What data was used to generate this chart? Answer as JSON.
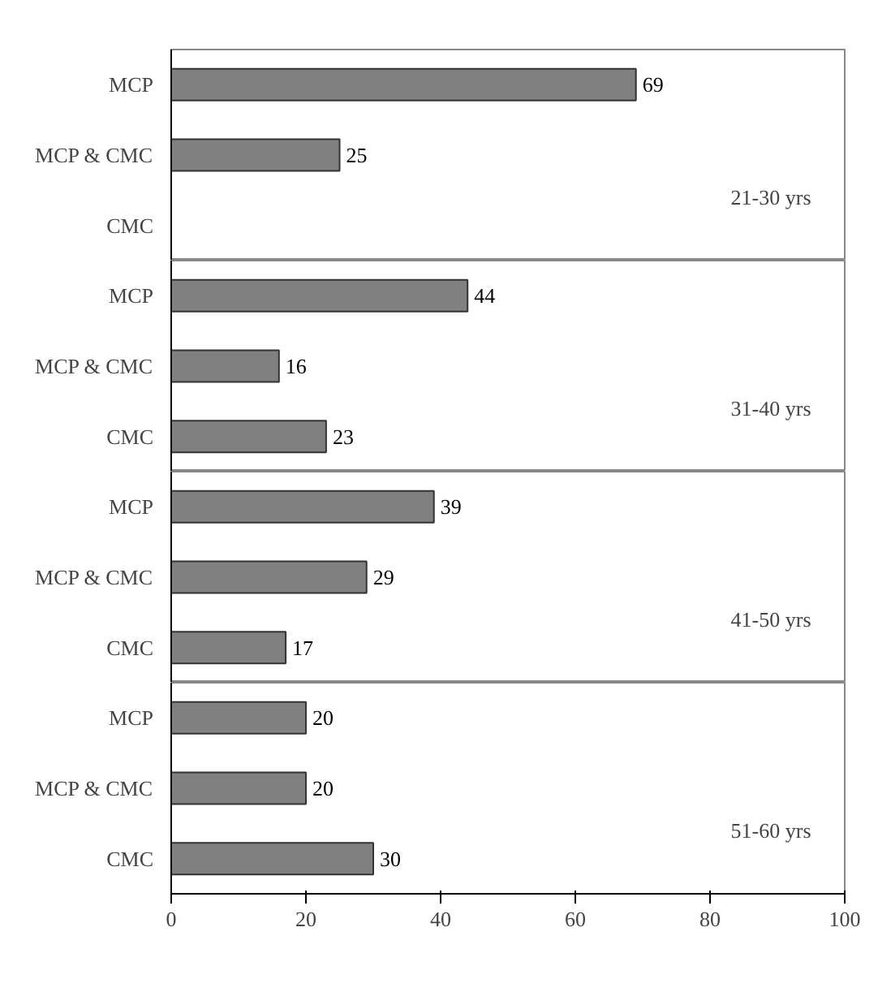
{
  "chart_data": [
    {
      "type": "bar",
      "orientation": "horizontal",
      "categories": [
        "MCP",
        "MCP & CMC",
        "CMC"
      ],
      "values": [
        69,
        25,
        null
      ],
      "color": "#808080",
      "xlim": [
        0,
        100
      ],
      "xticks": [
        0,
        20,
        40,
        60,
        80,
        100
      ],
      "data_labels": true,
      "tick_labels": "y",
      "grid": false,
      "annotations": [
        "21-30 yrs"
      ]
    },
    {
      "type": "bar",
      "orientation": "horizontal",
      "categories": [
        "MCP",
        "MCP & CMC",
        "CMC"
      ],
      "values": [
        44,
        16,
        23
      ],
      "color": "#808080",
      "xlim": [
        0,
        100
      ],
      "xticks": [
        0,
        20,
        40,
        60,
        80,
        100
      ],
      "data_labels": true,
      "tick_labels": "y",
      "grid": false,
      "annotations": [
        "31-40 yrs"
      ]
    },
    {
      "type": "bar",
      "orientation": "horizontal",
      "categories": [
        "MCP",
        "MCP & CMC",
        "CMC"
      ],
      "values": [
        39,
        29,
        17
      ],
      "color": "#808080",
      "xlim": [
        0,
        100
      ],
      "xticks": [
        0,
        20,
        40,
        60,
        80,
        100
      ],
      "data_labels": true,
      "tick_labels": "y",
      "grid": false,
      "annotations": [
        "41-50 yrs"
      ]
    },
    {
      "type": "bar",
      "orientation": "horizontal",
      "categories": [
        "MCP",
        "MCP & CMC",
        "CMC"
      ],
      "values": [
        20,
        20,
        30
      ],
      "color": "#808080",
      "xlim": [
        0,
        100
      ],
      "xticks": [
        0,
        20,
        40,
        60,
        80,
        100
      ],
      "data_labels": true,
      "grid": false,
      "annotations": [
        "51-60 yrs"
      ]
    }
  ]
}
